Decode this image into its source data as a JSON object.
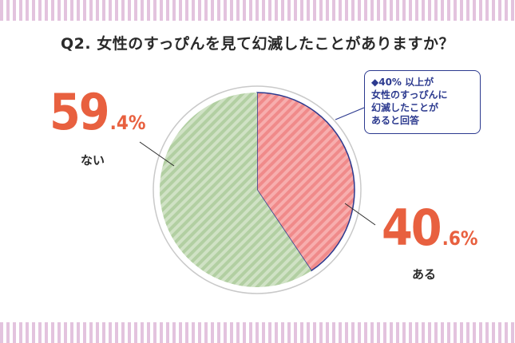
{
  "question": "Q2. 女性のすっぴんを見て幻滅したことがありますか？",
  "callout": {
    "lines": [
      "◆40% 以上が",
      "女性のすっぴんに",
      "幻滅したことが",
      "あると回答"
    ]
  },
  "labels": {
    "left": {
      "big": "59",
      "small": ".4%",
      "answer": "ない"
    },
    "right": {
      "big": "40",
      "small": ".6%",
      "answer": "ある"
    }
  },
  "colors": {
    "accent": "#e8603f",
    "navy": "#2c3a8f",
    "pink_stripe": "#e3c3de",
    "slice_ari": "#f08a8a",
    "slice_nai": "#b5d0a4"
  },
  "chart_data": {
    "type": "pie",
    "title": "Q2. 女性のすっぴんを見て幻滅したことがありますか？",
    "slices": [
      {
        "label": "ある",
        "value": 40.6,
        "color": "#f08a8a"
      },
      {
        "label": "ない",
        "value": 59.4,
        "color": "#b5d0a4"
      }
    ],
    "start": "12 o'clock",
    "direction": "clockwise"
  }
}
